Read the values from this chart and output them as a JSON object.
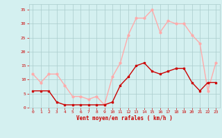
{
  "hours": [
    0,
    1,
    2,
    3,
    4,
    5,
    6,
    7,
    8,
    9,
    10,
    11,
    12,
    13,
    14,
    15,
    16,
    17,
    18,
    19,
    20,
    21,
    22,
    23
  ],
  "wind_avg": [
    6,
    6,
    6,
    2,
    1,
    1,
    1,
    1,
    1,
    1,
    2,
    8,
    11,
    15,
    16,
    13,
    12,
    13,
    14,
    14,
    9,
    6,
    9,
    9
  ],
  "wind_gust": [
    12,
    9,
    12,
    12,
    8,
    4,
    4,
    3,
    4,
    1,
    11,
    16,
    26,
    32,
    32,
    35,
    27,
    31,
    30,
    30,
    26,
    23,
    6,
    16
  ],
  "avg_color": "#cc0000",
  "gust_color": "#ffaaaa",
  "bg_color": "#d4f0f0",
  "grid_color": "#aacccc",
  "xlabel": "Vent moyen/en rafales ( km/h )",
  "xlabel_color": "#cc0000",
  "tick_color": "#cc0000",
  "ylim": [
    0,
    37
  ],
  "yticks": [
    0,
    5,
    10,
    15,
    20,
    25,
    30,
    35
  ],
  "xlim": [
    -0.5,
    23.5
  ]
}
